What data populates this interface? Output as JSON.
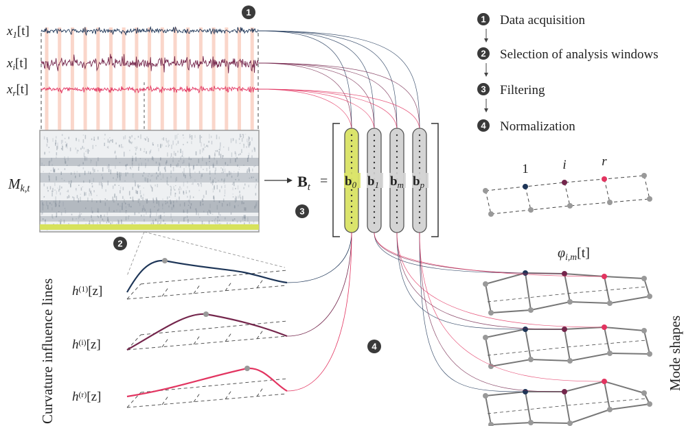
{
  "steps": [
    {
      "number": "1",
      "label": "Data acquisition"
    },
    {
      "number": "2",
      "label": "Selection of analysis windows"
    },
    {
      "number": "3",
      "label": "Filtering"
    },
    {
      "number": "4",
      "label": "Normalization"
    }
  ],
  "diagram_badges": [
    "1",
    "2",
    "3",
    "4"
  ],
  "signals": [
    {
      "symbol": "x",
      "subscript": "1",
      "argument": "[t]"
    },
    {
      "symbol": "x",
      "subscript": "i",
      "argument": "[t]"
    },
    {
      "symbol": "x",
      "subscript": "r",
      "argument": "[t]"
    }
  ],
  "matrix": {
    "symbol": "M",
    "subscript": "k,t"
  },
  "basis": {
    "symbol": "B",
    "subscript": "t",
    "equals": "=",
    "vectors": [
      {
        "symbol": "b",
        "subscript": "0"
      },
      {
        "symbol": "b",
        "subscript": "1"
      },
      {
        "symbol": "b",
        "subscript": "m"
      },
      {
        "symbol": "b",
        "subscript": "p"
      }
    ]
  },
  "sensors": [
    "1",
    "i",
    "r"
  ],
  "mode_label": {
    "symbol": "φ",
    "subscript": "i,m",
    "argument": "[t]"
  },
  "influence_lines": [
    {
      "symbol": "h",
      "superscript": "(1)",
      "argument": "[z]"
    },
    {
      "symbol": "h",
      "superscript": "(i)",
      "argument": "[z]"
    },
    {
      "symbol": "h",
      "superscript": "(r)",
      "argument": "[z]"
    }
  ],
  "left_caption": "Curvature influence lines",
  "right_caption": "Mode shapes"
}
